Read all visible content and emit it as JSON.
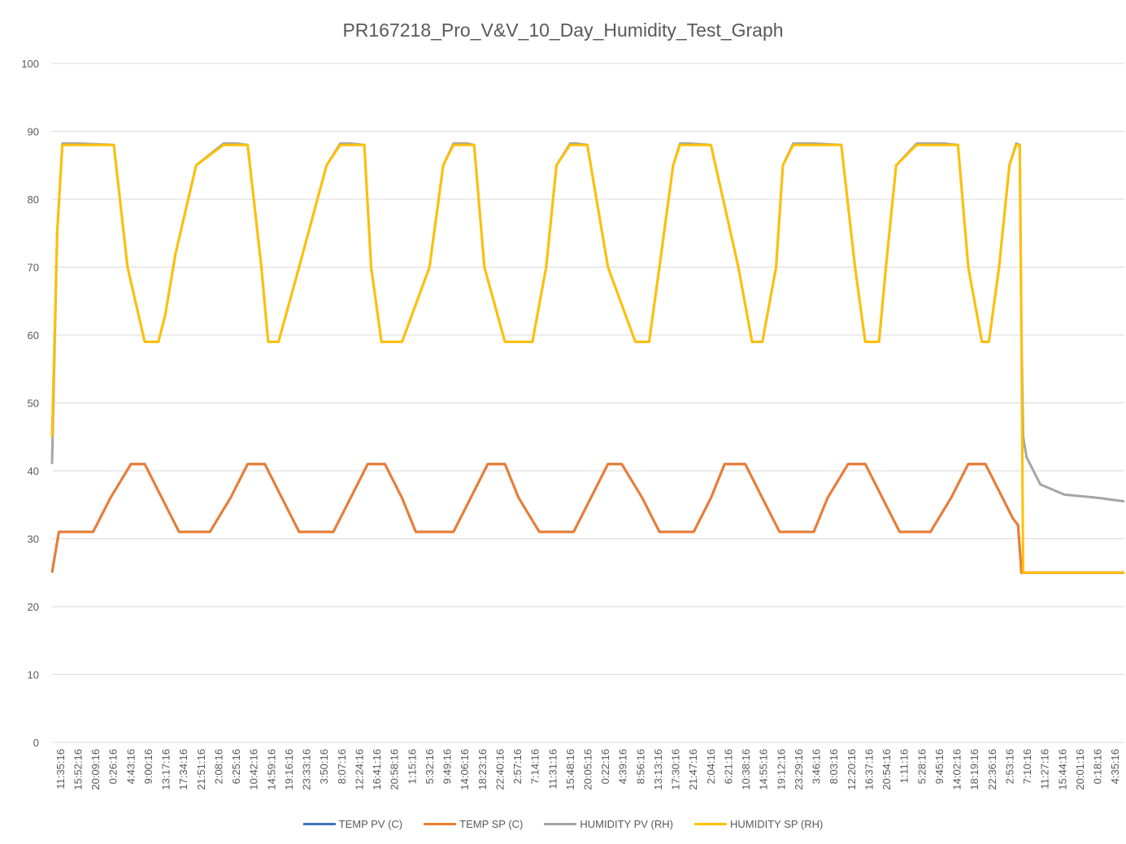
{
  "chart_data": {
    "type": "line",
    "title": "PR167218_Pro_V&V_10_Day_Humidity_Test_Graph",
    "xlabel": "",
    "ylabel": "",
    "ylim": [
      0,
      100
    ],
    "y_ticks": [
      0,
      10,
      20,
      30,
      40,
      50,
      60,
      70,
      80,
      90,
      100
    ],
    "grid": "horizontal",
    "legend_position": "bottom",
    "categories": [
      "11:35:16",
      "15:52:16",
      "20:09:16",
      "0:26:16",
      "4:43:16",
      "9:00:16",
      "13:17:16",
      "17:34:16",
      "21:51:16",
      "2:08:16",
      "6:25:16",
      "10:42:16",
      "14:59:16",
      "19:16:16",
      "23:33:16",
      "3:50:16",
      "8:07:16",
      "12:24:16",
      "16:41:16",
      "20:58:16",
      "1:15:16",
      "5:32:16",
      "9:49:16",
      "14:06:16",
      "18:23:16",
      "22:40:16",
      "2:57:16",
      "7:14:16",
      "11:31:16",
      "15:48:16",
      "20:05:16",
      "0:22:16",
      "4:39:16",
      "8:56:16",
      "13:13:16",
      "17:30:16",
      "21:47:16",
      "2:04:16",
      "6:21:16",
      "10:38:16",
      "14:55:16",
      "19:12:16",
      "23:29:16",
      "3:46:16",
      "8:03:16",
      "12:20:16",
      "16:37:16",
      "20:54:16",
      "1:11:16",
      "5:28:16",
      "9:45:16",
      "14:02:16",
      "18:19:16",
      "22:36:16",
      "2:53:16",
      "7:10:16",
      "11:27:16",
      "15:44:16",
      "20:01:16",
      "0:18:16",
      "4:35:16"
    ],
    "x_range": [
      0,
      31.25
    ],
    "series": [
      {
        "name": "TEMP PV (C)",
        "color": "#4472C4",
        "x": [
          0,
          0.1,
          0.2,
          0.5,
          1.2,
          1.7,
          2.3,
          2.7,
          3.2,
          3.7,
          4.2,
          4.6,
          5.2,
          5.7,
          6.2,
          6.7,
          7.2,
          7.6,
          8.2,
          8.7,
          9.2,
          9.7,
          10.2,
          10.6,
          11.2,
          11.7,
          12.2,
          12.7,
          13.2,
          13.6,
          14.2,
          14.7,
          15.2,
          15.7,
          16.2,
          16.6,
          17.2,
          17.7,
          18.2,
          18.7,
          19.2,
          19.6,
          20.2,
          20.7,
          21.2,
          21.7,
          22.2,
          22.6,
          23.2,
          23.7,
          24.2,
          24.7,
          25.2,
          25.6,
          26.2,
          26.7,
          27.2,
          27.7,
          28.0,
          28.15,
          28.25,
          28.5,
          29.5,
          31.25
        ],
        "values": [
          25,
          28,
          31,
          31,
          31,
          36,
          41,
          41,
          36,
          31,
          31,
          31,
          36,
          41,
          41,
          36,
          31,
          31,
          31,
          36,
          41,
          41,
          36,
          31,
          31,
          31,
          36,
          41,
          41,
          36,
          31,
          31,
          31,
          36,
          41,
          41,
          36,
          31,
          31,
          31,
          36,
          41,
          41,
          36,
          31,
          31,
          31,
          36,
          41,
          41,
          36,
          31,
          31,
          31,
          36,
          41,
          41,
          36,
          33,
          32,
          25,
          25,
          25,
          25
        ]
      },
      {
        "name": "TEMP SP (C)",
        "color": "#ED7D31",
        "x": [
          0,
          0.1,
          0.2,
          0.5,
          1.2,
          1.7,
          2.3,
          2.7,
          3.2,
          3.7,
          4.2,
          4.6,
          5.2,
          5.7,
          6.2,
          6.7,
          7.2,
          7.6,
          8.2,
          8.7,
          9.2,
          9.7,
          10.2,
          10.6,
          11.2,
          11.7,
          12.2,
          12.7,
          13.2,
          13.6,
          14.2,
          14.7,
          15.2,
          15.7,
          16.2,
          16.6,
          17.2,
          17.7,
          18.2,
          18.7,
          19.2,
          19.6,
          20.2,
          20.7,
          21.2,
          21.7,
          22.2,
          22.6,
          23.2,
          23.7,
          24.2,
          24.7,
          25.2,
          25.6,
          26.2,
          26.7,
          27.2,
          27.7,
          28.0,
          28.15,
          28.25,
          28.5,
          29.5,
          31.25
        ],
        "values": [
          25,
          28,
          31,
          31,
          31,
          36,
          41,
          41,
          36,
          31,
          31,
          31,
          36,
          41,
          41,
          36,
          31,
          31,
          31,
          36,
          41,
          41,
          36,
          31,
          31,
          31,
          36,
          41,
          41,
          36,
          31,
          31,
          31,
          36,
          41,
          41,
          36,
          31,
          31,
          31,
          36,
          41,
          41,
          36,
          31,
          31,
          31,
          36,
          41,
          41,
          36,
          31,
          31,
          31,
          36,
          41,
          41,
          36,
          33,
          32,
          25,
          25,
          25,
          25
        ]
      },
      {
        "name": "HUMIDITY PV (RH)",
        "color": "#A5A5A5",
        "x": [
          0,
          0.15,
          0.3,
          0.8,
          1.8,
          2.2,
          2.7,
          3.1,
          3.3,
          3.6,
          4.2,
          5.0,
          5.4,
          5.7,
          6.1,
          6.3,
          6.6,
          7.2,
          8.0,
          8.4,
          8.7,
          9.1,
          9.3,
          9.6,
          10.2,
          11.0,
          11.4,
          11.7,
          12.1,
          12.3,
          12.6,
          13.2,
          14.0,
          14.4,
          14.7,
          15.1,
          15.3,
          15.6,
          16.2,
          17.0,
          17.4,
          17.7,
          18.1,
          18.3,
          18.6,
          19.2,
          20.0,
          20.4,
          20.7,
          21.1,
          21.3,
          21.6,
          22.2,
          23.0,
          23.4,
          23.7,
          24.1,
          24.3,
          24.6,
          25.2,
          26.0,
          26.4,
          26.7,
          27.1,
          27.3,
          27.6,
          27.9,
          28.1,
          28.2,
          28.25,
          28.3,
          28.4,
          28.8,
          29.5,
          30.5,
          31.25
        ],
        "values": [
          41,
          75,
          88.2,
          88.2,
          88,
          70,
          59,
          59,
          63,
          72,
          85,
          88.2,
          88.2,
          88,
          70,
          59,
          59,
          70,
          85,
          88.2,
          88.2,
          88,
          70,
          59,
          59,
          70,
          85,
          88.2,
          88.2,
          88,
          70,
          59,
          59,
          70,
          85,
          88.2,
          88.2,
          88,
          70,
          59,
          59,
          70,
          85,
          88.2,
          88.2,
          88,
          70,
          59,
          59,
          70,
          85,
          88.2,
          88.2,
          88,
          70,
          59,
          59,
          70,
          85,
          88.2,
          88.2,
          88,
          70,
          59,
          59,
          70,
          85,
          88.2,
          88,
          60,
          45,
          42,
          38,
          36.5,
          36,
          35.5
        ]
      },
      {
        "name": "HUMIDITY SP (RH)",
        "color": "#FFC000",
        "x": [
          0,
          0.15,
          0.3,
          0.8,
          1.8,
          2.2,
          2.7,
          3.1,
          3.3,
          3.6,
          4.2,
          5.0,
          5.4,
          5.7,
          6.1,
          6.3,
          6.6,
          7.2,
          8.0,
          8.4,
          8.7,
          9.1,
          9.3,
          9.6,
          10.2,
          11.0,
          11.4,
          11.7,
          12.1,
          12.3,
          12.6,
          13.2,
          14.0,
          14.4,
          14.7,
          15.1,
          15.3,
          15.6,
          16.2,
          17.0,
          17.4,
          17.7,
          18.1,
          18.3,
          18.6,
          19.2,
          20.0,
          20.4,
          20.7,
          21.1,
          21.3,
          21.6,
          22.2,
          23.0,
          23.4,
          23.7,
          24.1,
          24.3,
          24.6,
          25.2,
          26.0,
          26.4,
          26.7,
          27.1,
          27.3,
          27.6,
          27.9,
          28.1,
          28.2,
          28.25,
          28.3,
          29.5,
          31.25
        ],
        "values": [
          45,
          75,
          88,
          88,
          88,
          70,
          59,
          59,
          63,
          72,
          85,
          88,
          88,
          88,
          70,
          59,
          59,
          70,
          85,
          88,
          88,
          88,
          70,
          59,
          59,
          70,
          85,
          88,
          88,
          88,
          70,
          59,
          59,
          70,
          85,
          88,
          88,
          88,
          70,
          59,
          59,
          70,
          85,
          88,
          88,
          88,
          70,
          59,
          59,
          70,
          85,
          88,
          88,
          88,
          70,
          59,
          59,
          70,
          85,
          88,
          88,
          88,
          70,
          59,
          59,
          70,
          85,
          88,
          88,
          60,
          25,
          25,
          25
        ]
      }
    ]
  }
}
